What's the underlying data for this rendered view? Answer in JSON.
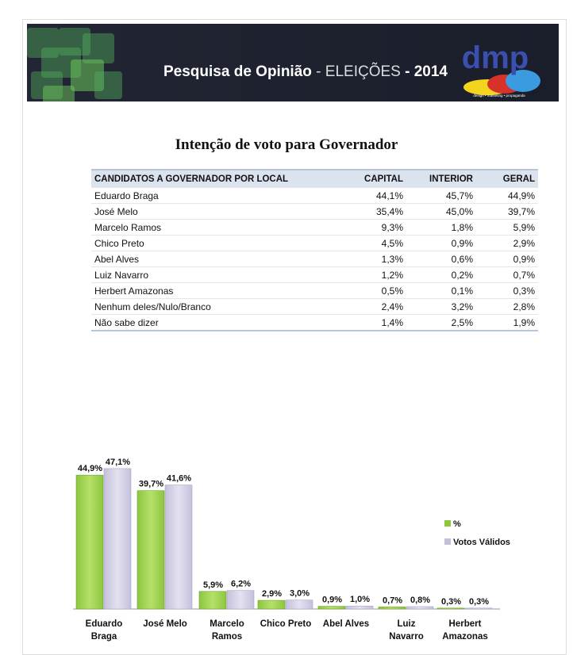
{
  "header": {
    "title_bold": "Pesquisa de Opinião",
    "title_light": " - ELEIÇÕES ",
    "title_year": "- 2014",
    "logo_text": "dmp",
    "logo_tagline": "design • marketing • propaganda"
  },
  "page_title": "Intenção de voto para Governador",
  "table": {
    "headers": [
      "CANDIDATOS A GOVERNADOR POR LOCAL",
      "CAPITAL",
      "INTERIOR",
      "GERAL"
    ],
    "rows": [
      [
        "Eduardo Braga",
        "44,1%",
        "45,7%",
        "44,9%"
      ],
      [
        "José Melo",
        "35,4%",
        "45,0%",
        "39,7%"
      ],
      [
        "Marcelo Ramos",
        "9,3%",
        "1,8%",
        "5,9%"
      ],
      [
        "Chico Preto",
        "4,5%",
        "0,9%",
        "2,9%"
      ],
      [
        "Abel Alves",
        "1,3%",
        "0,6%",
        "0,9%"
      ],
      [
        "Luiz Navarro",
        "1,2%",
        "0,2%",
        "0,7%"
      ],
      [
        "Herbert Amazonas",
        "0,5%",
        "0,1%",
        "0,3%"
      ],
      [
        "Nenhum deles/Nulo/Branco",
        "2,4%",
        "3,2%",
        "2,8%"
      ],
      [
        "Não sabe dizer",
        "1,4%",
        "2,5%",
        "1,9%"
      ]
    ]
  },
  "chart_data": {
    "type": "bar",
    "title": "",
    "xlabel": "",
    "ylabel": "",
    "ylim": [
      0,
      50
    ],
    "categories": [
      [
        "Eduardo",
        "Braga"
      ],
      [
        "José Melo"
      ],
      [
        "Marcelo",
        "Ramos"
      ],
      [
        "Chico Preto"
      ],
      [
        "Abel Alves"
      ],
      [
        "Luiz",
        "Navarro"
      ],
      [
        "Herbert",
        "Amazonas"
      ]
    ],
    "series": [
      {
        "name": "%",
        "color": "#8cc63f",
        "values": [
          44.9,
          39.7,
          5.9,
          2.9,
          0.9,
          0.7,
          0.3
        ],
        "labels": [
          "44,9%",
          "39,7%",
          "5,9%",
          "2,9%",
          "0,9%",
          "0,7%",
          "0,3%"
        ]
      },
      {
        "name": "Votos Válidos",
        "color": "#c4c0dc",
        "values": [
          47.1,
          41.6,
          6.2,
          3.0,
          1.0,
          0.8,
          0.3
        ],
        "labels": [
          "47,1%",
          "41,6%",
          "6,2%",
          "3,0%",
          "1,0%",
          "0,8%",
          "0,3%"
        ]
      }
    ],
    "legend": "right"
  }
}
